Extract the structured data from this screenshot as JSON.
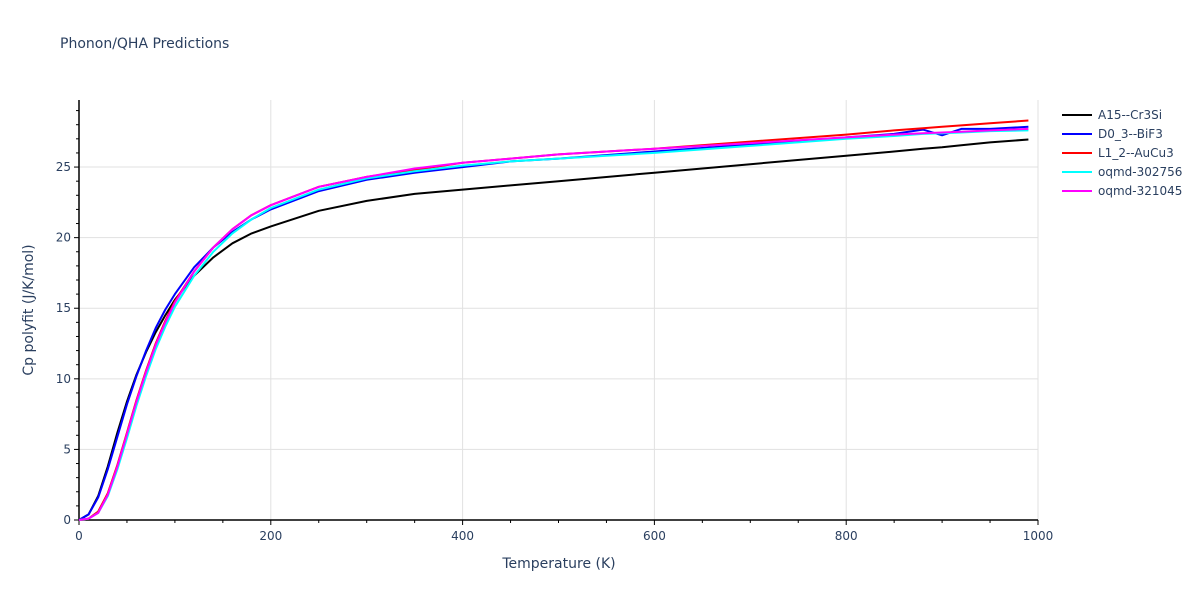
{
  "chart_data": {
    "type": "line",
    "title": "Phonon/QHA Predictions",
    "xlabel": "Temperature (K)",
    "ylabel": "Cp polyfit (J/K/mol)",
    "xlim": [
      0,
      1000
    ],
    "ylim": [
      0,
      29.75
    ],
    "xticks": [
      0,
      200,
      400,
      600,
      800,
      1000
    ],
    "yticks": [
      0,
      5,
      10,
      15,
      20,
      25
    ],
    "grid": true,
    "legend_position": "right",
    "x": [
      0,
      10,
      20,
      30,
      40,
      50,
      60,
      70,
      80,
      90,
      100,
      120,
      140,
      160,
      180,
      200,
      250,
      300,
      350,
      400,
      450,
      500,
      600,
      700,
      800,
      850,
      880,
      900,
      920,
      950,
      990
    ],
    "series": [
      {
        "name": "A15--Cr3Si",
        "color": "#000000",
        "values": [
          0,
          0.4,
          1.7,
          3.8,
          6.2,
          8.4,
          10.3,
          11.9,
          13.3,
          14.5,
          15.6,
          17.3,
          18.6,
          19.6,
          20.3,
          20.8,
          21.9,
          22.6,
          23.1,
          23.4,
          23.7,
          24.0,
          24.6,
          25.2,
          25.8,
          26.1,
          26.3,
          26.4,
          26.55,
          26.75,
          26.95
        ]
      },
      {
        "name": "D0_3--BiF3",
        "color": "#0000ff",
        "values": [
          0,
          0.4,
          1.6,
          3.6,
          5.9,
          8.2,
          10.2,
          12.0,
          13.6,
          14.9,
          16.0,
          17.9,
          19.3,
          20.4,
          21.3,
          22.0,
          23.3,
          24.1,
          24.6,
          25.0,
          25.4,
          25.6,
          26.1,
          26.6,
          27.1,
          27.35,
          27.65,
          27.25,
          27.7,
          27.7,
          27.85
        ]
      },
      {
        "name": "L1_2--AuCu3",
        "color": "#ff0000",
        "values": [
          0,
          0.1,
          0.6,
          1.9,
          3.9,
          6.2,
          8.5,
          10.6,
          12.5,
          14.1,
          15.5,
          17.6,
          19.3,
          20.6,
          21.6,
          22.3,
          23.6,
          24.3,
          24.8,
          25.3,
          25.6,
          25.9,
          26.3,
          26.8,
          27.3,
          27.6,
          27.75,
          27.85,
          27.95,
          28.1,
          28.3
        ]
      },
      {
        "name": "oqmd-302756",
        "color": "#00ffff",
        "values": [
          0,
          0.1,
          0.5,
          1.7,
          3.6,
          5.8,
          8.1,
          10.2,
          12.1,
          13.7,
          15.1,
          17.3,
          19.0,
          20.3,
          21.3,
          22.1,
          23.4,
          24.2,
          24.7,
          25.1,
          25.4,
          25.6,
          26.0,
          26.5,
          27.0,
          27.2,
          27.35,
          27.4,
          27.45,
          27.55,
          27.6
        ]
      },
      {
        "name": "oqmd-321045",
        "color": "#ff00ff",
        "values": [
          0,
          0.1,
          0.5,
          1.8,
          3.8,
          6.1,
          8.4,
          10.5,
          12.4,
          14.0,
          15.4,
          17.6,
          19.3,
          20.6,
          21.6,
          22.3,
          23.6,
          24.3,
          24.9,
          25.3,
          25.6,
          25.9,
          26.3,
          26.7,
          27.1,
          27.3,
          27.4,
          27.45,
          27.5,
          27.6,
          27.7
        ]
      }
    ]
  }
}
